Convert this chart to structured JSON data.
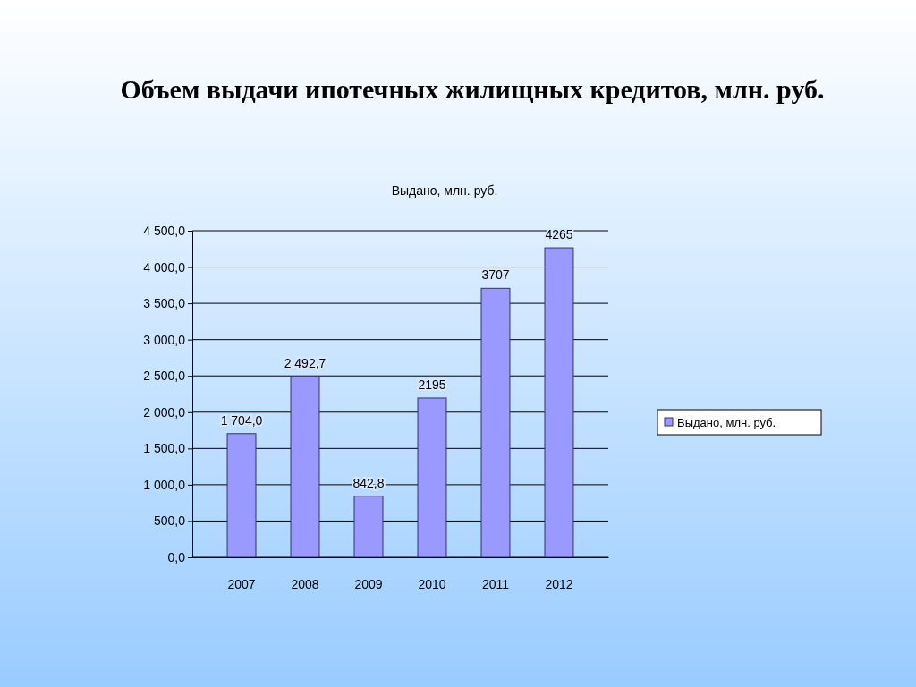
{
  "chart_data": {
    "type": "bar",
    "title": "Объем выдачи ипотечных жилищных кредитов, млн. руб.",
    "subtitle": "Выдано, млн. руб.",
    "categories": [
      "2007",
      "2008",
      "2009",
      "2010",
      "2011",
      "2012"
    ],
    "series": [
      {
        "name": "Выдано, млн. руб.",
        "color": "#9999ff",
        "values": [
          1704.0,
          2492.7,
          842.8,
          2195,
          3707,
          4265
        ],
        "value_labels": [
          "1 704,0",
          "2 492,7",
          "842,8",
          "2195",
          "3707",
          "4265"
        ]
      }
    ],
    "ylim": [
      0,
      4500
    ],
    "yticks": [
      {
        "value": 0,
        "label": "0,0"
      },
      {
        "value": 500,
        "label": "500,0"
      },
      {
        "value": 1000,
        "label": "1 000,0"
      },
      {
        "value": 1500,
        "label": "1 500,0"
      },
      {
        "value": 2000,
        "label": "2 000,0"
      },
      {
        "value": 2500,
        "label": "2 500,0"
      },
      {
        "value": 3000,
        "label": "3 000,0"
      },
      {
        "value": 3500,
        "label": "3 500,0"
      },
      {
        "value": 4000,
        "label": "4 000,0"
      },
      {
        "value": 4500,
        "label": "4 500,0"
      }
    ],
    "grid": true,
    "legend": "right"
  }
}
